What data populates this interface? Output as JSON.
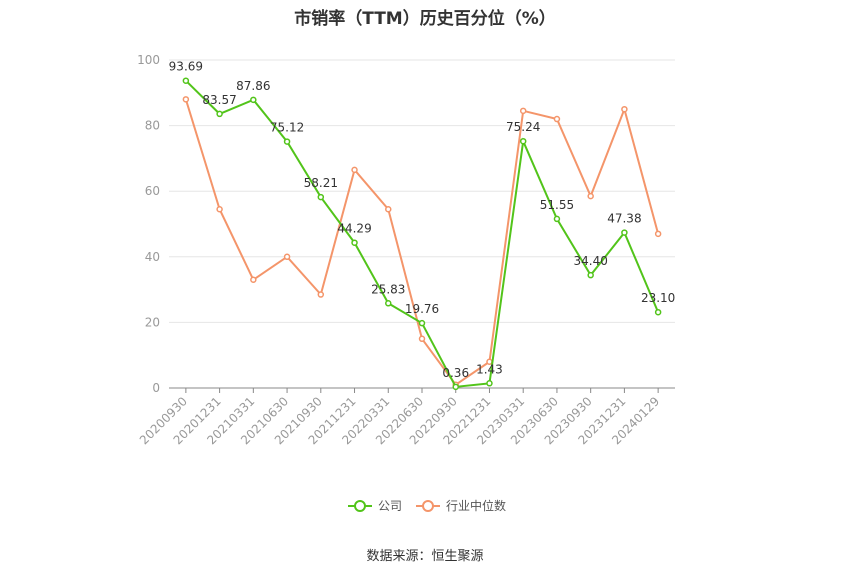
{
  "title": "市销率（TTM）历史百分位（%）",
  "source": "数据来源：恒生聚源",
  "chart_data": {
    "type": "line",
    "title": "市销率（TTM）历史百分位（%）",
    "xlabel": "",
    "ylabel": "",
    "ylim": [
      0,
      100
    ],
    "yticks": [
      0,
      20,
      40,
      60,
      80,
      100
    ],
    "grid": true,
    "legend_position": "bottom",
    "categories": [
      "20200930",
      "20201231",
      "20210331",
      "20210630",
      "20210930",
      "20211231",
      "20220331",
      "20220630",
      "20220930",
      "20221231",
      "20230331",
      "20230630",
      "20230930",
      "20231231",
      "20240129"
    ],
    "series": [
      {
        "name": "公司",
        "color": "#52c41a",
        "values": [
          93.69,
          83.57,
          87.86,
          75.12,
          58.21,
          44.29,
          25.83,
          19.76,
          0.36,
          1.43,
          75.24,
          51.55,
          34.4,
          47.38,
          23.1
        ],
        "labels": [
          "93.69",
          "83.57",
          "87.86",
          "75.12",
          "58.21",
          "44.29",
          "25.83",
          "19.76",
          "0.36",
          "1.43",
          "75.24",
          "51.55",
          "34.40",
          "47.38",
          "23.10"
        ]
      },
      {
        "name": "行业中位数",
        "color": "#f4956a",
        "values": [
          88,
          54.5,
          33,
          40,
          28.5,
          66.5,
          54.5,
          15,
          1,
          8,
          84.5,
          82,
          58.5,
          85,
          47
        ]
      }
    ]
  }
}
